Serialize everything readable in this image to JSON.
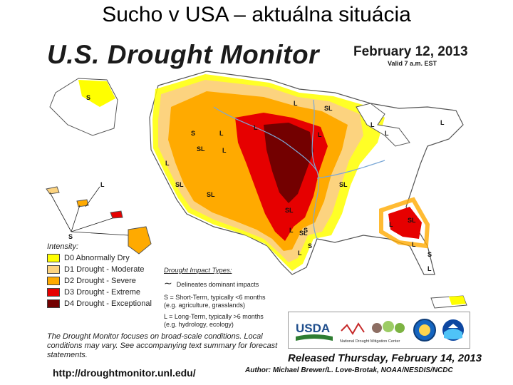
{
  "slide_title": "Sucho v USA – aktuálna situácia",
  "header": {
    "title": "U.S. Drought Monitor",
    "date": "February 12, 2013",
    "valid": "Valid 7 a.m. EST"
  },
  "colors": {
    "D0": "#ffff00",
    "D1": "#fcd37f",
    "D2": "#ffaa00",
    "D3": "#e60000",
    "D4": "#730000",
    "none": "#ffffff",
    "boundary": "#555555",
    "river": "#7aa7d6"
  },
  "legend": {
    "heading": "Intensity:",
    "items": [
      {
        "code": "D0",
        "label": "D0 Abnormally Dry",
        "color": "#ffff00"
      },
      {
        "code": "D1",
        "label": "D1 Drought - Moderate",
        "color": "#fcd37f"
      },
      {
        "code": "D2",
        "label": "D2 Drought - Severe",
        "color": "#ffaa00"
      },
      {
        "code": "D3",
        "label": "D3 Drought - Extreme",
        "color": "#e60000"
      },
      {
        "code": "D4",
        "label": "D4 Drought - Exceptional",
        "color": "#730000"
      }
    ]
  },
  "impacts": {
    "heading": "Drought Impact Types:",
    "delineates": "Delineates dominant impacts",
    "short_term": "S = Short-Term, typically <6 months",
    "short_term_eg": "(e.g. agriculture, grasslands)",
    "long_term": "L = Long-Term, typically >6 months",
    "long_term_eg": "(e.g. hydrology, ecology)"
  },
  "map_labels": [
    "S",
    "L",
    "SL",
    "SL",
    "L",
    "L",
    "SL",
    "L",
    "SL",
    "L",
    "SL",
    "L",
    "L",
    "SL",
    "L",
    "L",
    "SL",
    "L",
    "S",
    "L",
    "L",
    "S",
    "L",
    "L",
    "SL",
    "L",
    "S",
    "S",
    "S"
  ],
  "focus_note": "The Drought Monitor focuses on broad-scale conditions. Local conditions may vary. See accompanying text summary for forecast statements.",
  "url": "http://droughtmonitor.unl.edu/",
  "logos": {
    "usda": "USDA",
    "ndmc": "National Drought Mitigation Center"
  },
  "released": "Released Thursday, February 14, 2013",
  "author": "Author: Michael Brewer/L. Love-Brotak, NOAA/NESDIS/NCDC"
}
